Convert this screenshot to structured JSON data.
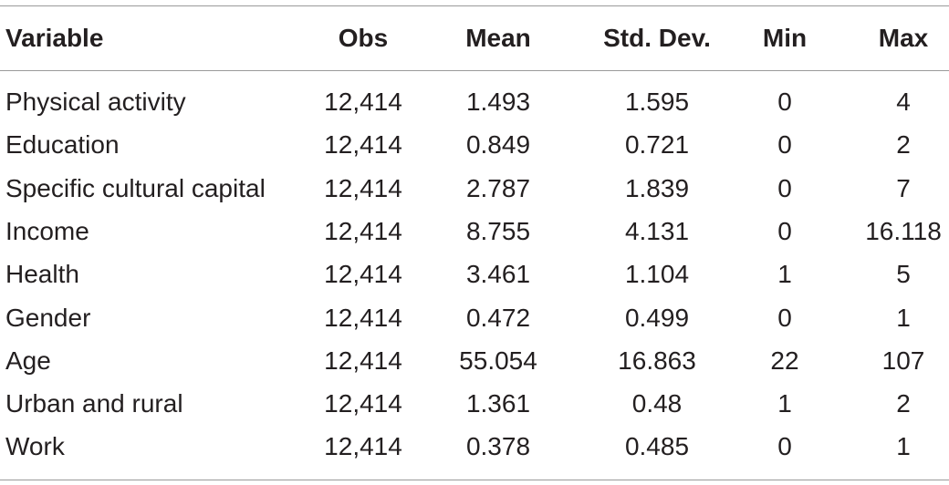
{
  "table": {
    "columns": [
      "Variable",
      "Obs",
      "Mean",
      "Std. Dev.",
      "Min",
      "Max"
    ],
    "rows": [
      {
        "variable": "Physical activity",
        "obs": "12,414",
        "mean": "1.493",
        "sd": "1.595",
        "min": "0",
        "max": "4"
      },
      {
        "variable": "Education",
        "obs": "12,414",
        "mean": "0.849",
        "sd": "0.721",
        "min": "0",
        "max": "2"
      },
      {
        "variable": "Specific cultural capital",
        "obs": "12,414",
        "mean": "2.787",
        "sd": "1.839",
        "min": "0",
        "max": "7"
      },
      {
        "variable": "Income",
        "obs": "12,414",
        "mean": "8.755",
        "sd": "4.131",
        "min": "0",
        "max": "16.118"
      },
      {
        "variable": "Health",
        "obs": "12,414",
        "mean": "3.461",
        "sd": "1.104",
        "min": "1",
        "max": "5"
      },
      {
        "variable": "Gender",
        "obs": "12,414",
        "mean": "0.472",
        "sd": "0.499",
        "min": "0",
        "max": "1"
      },
      {
        "variable": "Age",
        "obs": "12,414",
        "mean": "55.054",
        "sd": "16.863",
        "min": "22",
        "max": "107"
      },
      {
        "variable": "Urban and rural",
        "obs": "12,414",
        "mean": "1.361",
        "sd": "0.48",
        "min": "1",
        "max": "2"
      },
      {
        "variable": "Work",
        "obs": "12,414",
        "mean": "0.378",
        "sd": "0.485",
        "min": "0",
        "max": "1"
      }
    ]
  }
}
